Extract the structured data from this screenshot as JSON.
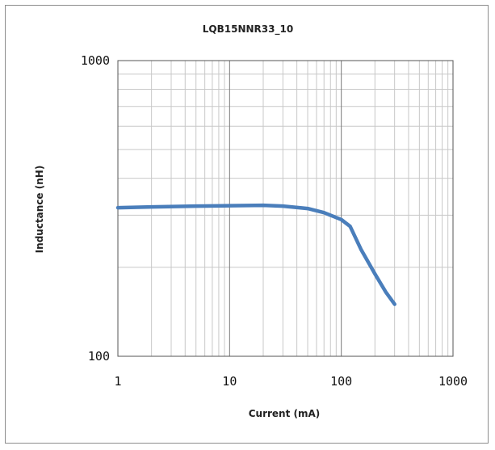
{
  "chart_data": {
    "type": "line",
    "title": "LQB15NNR33_10",
    "xlabel": "Current (mA)",
    "ylabel": "Inductance (nH)",
    "x_scale": "log",
    "y_scale": "log",
    "xlim": [
      1,
      1000
    ],
    "ylim": [
      100,
      1000
    ],
    "x_ticks": [
      "1",
      "10",
      "100",
      "1000"
    ],
    "y_ticks": [
      "100",
      "1000"
    ],
    "grid": true,
    "series": [
      {
        "color": "#4a7ebb",
        "x": [
          1,
          2,
          5,
          10,
          20,
          30,
          50,
          70,
          100,
          120,
          150,
          200,
          250,
          300
        ],
        "y": [
          318,
          320,
          322,
          323,
          324,
          322,
          316,
          306,
          290,
          275,
          230,
          190,
          165,
          150
        ]
      }
    ]
  }
}
